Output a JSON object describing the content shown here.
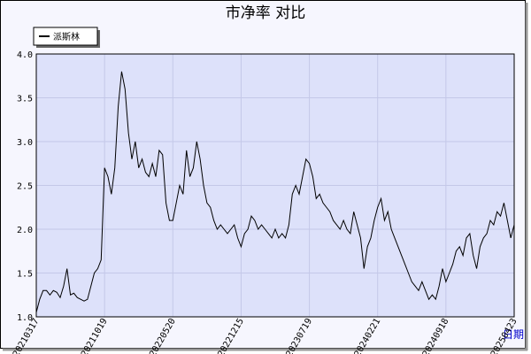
{
  "chart_data": {
    "type": "line",
    "title": "市净率  对比",
    "x_label": "日期",
    "series": [
      {
        "name": "派斯林",
        "color": "#000000",
        "values": [
          1.05,
          1.2,
          1.3,
          1.3,
          1.25,
          1.3,
          1.28,
          1.22,
          1.35,
          1.55,
          1.25,
          1.27,
          1.22,
          1.2,
          1.18,
          1.2,
          1.35,
          1.5,
          1.55,
          1.65,
          2.7,
          2.6,
          2.4,
          2.7,
          3.4,
          3.8,
          3.6,
          3.1,
          2.8,
          3.0,
          2.7,
          2.8,
          2.65,
          2.6,
          2.75,
          2.6,
          2.9,
          2.85,
          2.3,
          2.1,
          2.1,
          2.3,
          2.5,
          2.4,
          2.9,
          2.6,
          2.7,
          3.0,
          2.8,
          2.5,
          2.3,
          2.25,
          2.1,
          2.0,
          2.05,
          2.0,
          1.95,
          2.0,
          2.05,
          1.9,
          1.8,
          1.95,
          2.0,
          2.15,
          2.1,
          2.0,
          2.05,
          2.0,
          1.95,
          1.9,
          2.0,
          1.9,
          1.95,
          1.9,
          2.05,
          2.4,
          2.5,
          2.4,
          2.6,
          2.8,
          2.75,
          2.6,
          2.35,
          2.4,
          2.3,
          2.25,
          2.2,
          2.1,
          2.05,
          2.0,
          2.1,
          2.0,
          1.95,
          2.2,
          2.05,
          1.9,
          1.55,
          1.8,
          1.9,
          2.1,
          2.25,
          2.35,
          2.1,
          2.2,
          2.0,
          1.9,
          1.8,
          1.7,
          1.6,
          1.5,
          1.4,
          1.35,
          1.3,
          1.4,
          1.3,
          1.2,
          1.25,
          1.2,
          1.35,
          1.55,
          1.4,
          1.5,
          1.6,
          1.75,
          1.8,
          1.7,
          1.9,
          1.95,
          1.7,
          1.55,
          1.8,
          1.9,
          1.95,
          2.1,
          2.05,
          2.2,
          2.15,
          2.3,
          2.1,
          1.9,
          2.05
        ]
      }
    ],
    "xlim": [
      0,
      140
    ],
    "xticks": [
      {
        "value": 0,
        "label": "20210317"
      },
      {
        "value": 20,
        "label": "20211019"
      },
      {
        "value": 40,
        "label": "20220520"
      },
      {
        "value": 60,
        "label": "20221215"
      },
      {
        "value": 80,
        "label": "20230719"
      },
      {
        "value": 100,
        "label": "20240221"
      },
      {
        "value": 120,
        "label": "20240918"
      },
      {
        "value": 140,
        "label": "20250423"
      }
    ],
    "ylim": [
      1,
      4
    ],
    "yticks": [
      {
        "value": 1,
        "label": "1.0"
      },
      1.5,
      {
        "value": 2,
        "label": "2.0"
      },
      2.5,
      {
        "value": 3,
        "label": "3.0"
      },
      3.5,
      {
        "value": 4,
        "label": "4.0"
      }
    ],
    "grid": true
  }
}
